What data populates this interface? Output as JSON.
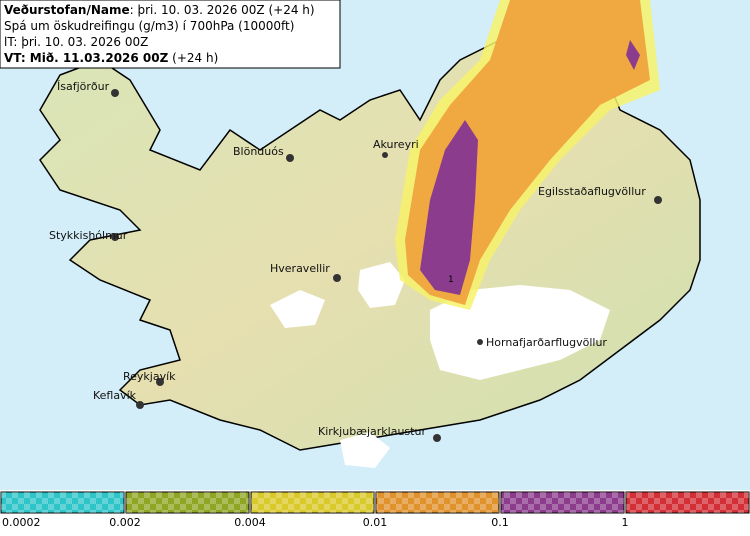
{
  "header": {
    "line1_label": "Veðurstofan/Name",
    "line1_value": ": þri. 10. 03. 2026 00Z (+24 h)",
    "line2": "Spá um öskudreifingu (g/m3) í 700hPa (10000ft)",
    "line3": "lT: þri. 10. 03. 2026 00Z",
    "line4_bold": "VT: Mið. 11.03.2026 00Z",
    "line4_rest": " (+24 h)"
  },
  "places": [
    "Ísafjörður",
    "Blönduós",
    "Akureyri",
    "Egilsstaðaflugvöllur",
    "Stykkishólmur",
    "Hveravellir",
    "Hornafjarðarflugvöllur",
    "Reykjavík",
    "Keflavík",
    "Kirkjubæjarklaustur"
  ],
  "contour_label": "1",
  "legend": {
    "colors": [
      "#2ec4c8",
      "#8fa624",
      "#d9c92a",
      "#e0922c",
      "#8c3c8c",
      "#d32f36"
    ],
    "labels": [
      "0.0002",
      "0.002",
      "0.004",
      "0.01",
      "0.1",
      "1"
    ]
  }
}
